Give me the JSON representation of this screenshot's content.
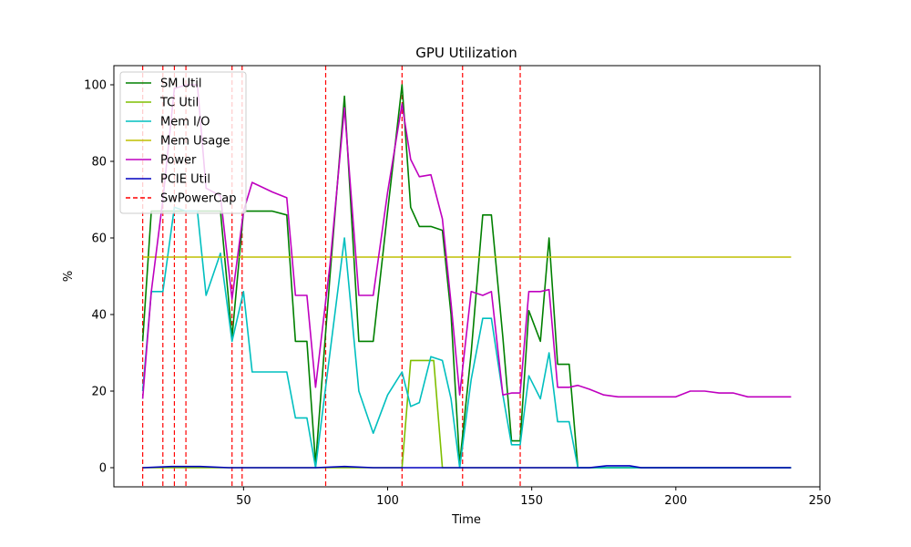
{
  "chart_data": {
    "type": "line",
    "title": "GPU Utilization",
    "xlabel": "Time",
    "ylabel": "%",
    "xlim": [
      5,
      250
    ],
    "ylim": [
      -5,
      105
    ],
    "xticks": [
      50,
      100,
      150,
      200,
      250
    ],
    "yticks": [
      0,
      20,
      40,
      60,
      80,
      100
    ],
    "grid": false,
    "legend_position": "upper-left",
    "series": [
      {
        "name": "SM Util",
        "color": "#008000",
        "points": [
          [
            15,
            33
          ],
          [
            18,
            67
          ],
          [
            22,
            67
          ],
          [
            26,
            67
          ],
          [
            30,
            67
          ],
          [
            34,
            67
          ],
          [
            37,
            67
          ],
          [
            42,
            67
          ],
          [
            46,
            34
          ],
          [
            50,
            67
          ],
          [
            55,
            67
          ],
          [
            60,
            67
          ],
          [
            65,
            66
          ],
          [
            68,
            33
          ],
          [
            72,
            33
          ],
          [
            75,
            1
          ],
          [
            80,
            50
          ],
          [
            85,
            97
          ],
          [
            90,
            33
          ],
          [
            95,
            33
          ],
          [
            100,
            67
          ],
          [
            105,
            100
          ],
          [
            108,
            68
          ],
          [
            111,
            63
          ],
          [
            115,
            63
          ],
          [
            119,
            62
          ],
          [
            122,
            40
          ],
          [
            125,
            1
          ],
          [
            129,
            30
          ],
          [
            133,
            66
          ],
          [
            136,
            66
          ],
          [
            140,
            34
          ],
          [
            143,
            7
          ],
          [
            146,
            7
          ],
          [
            149,
            41
          ],
          [
            153,
            33
          ],
          [
            156,
            60
          ],
          [
            159,
            27
          ],
          [
            163,
            27
          ],
          [
            166,
            0
          ],
          [
            175,
            0
          ],
          [
            240,
            0
          ]
        ]
      },
      {
        "name": "TC Util",
        "color": "#7fbf00",
        "points": [
          [
            15,
            0
          ],
          [
            100,
            0
          ],
          [
            105,
            0
          ],
          [
            108,
            28
          ],
          [
            114,
            28
          ],
          [
            116,
            28
          ],
          [
            119,
            0
          ],
          [
            240,
            0
          ]
        ]
      },
      {
        "name": "Mem I/O",
        "color": "#00bfbf",
        "points": [
          [
            15,
            20
          ],
          [
            18,
            46
          ],
          [
            22,
            46
          ],
          [
            26,
            68
          ],
          [
            30,
            67
          ],
          [
            34,
            67
          ],
          [
            37,
            45
          ],
          [
            42,
            56
          ],
          [
            46,
            33
          ],
          [
            50,
            46
          ],
          [
            53,
            25
          ],
          [
            60,
            25
          ],
          [
            65,
            25
          ],
          [
            68,
            13
          ],
          [
            72,
            13
          ],
          [
            75,
            0
          ],
          [
            80,
            30
          ],
          [
            85,
            60
          ],
          [
            90,
            20
          ],
          [
            95,
            9
          ],
          [
            100,
            19
          ],
          [
            105,
            25
          ],
          [
            108,
            16
          ],
          [
            111,
            17
          ],
          [
            115,
            29
          ],
          [
            119,
            28
          ],
          [
            122,
            18
          ],
          [
            125,
            0
          ],
          [
            129,
            23
          ],
          [
            133,
            39
          ],
          [
            136,
            39
          ],
          [
            140,
            19
          ],
          [
            143,
            6
          ],
          [
            146,
            6
          ],
          [
            149,
            24
          ],
          [
            153,
            18
          ],
          [
            156,
            30
          ],
          [
            159,
            12
          ],
          [
            163,
            12
          ],
          [
            166,
            0
          ],
          [
            175,
            0
          ],
          [
            240,
            0
          ]
        ]
      },
      {
        "name": "Mem Usage",
        "color": "#bfbf00",
        "points": [
          [
            15,
            55
          ],
          [
            240,
            55
          ]
        ]
      },
      {
        "name": "Power",
        "color": "#bf00bf",
        "points": [
          [
            15,
            18
          ],
          [
            18,
            46
          ],
          [
            22,
            70
          ],
          [
            26,
            99
          ],
          [
            30,
            100
          ],
          [
            34,
            100
          ],
          [
            37,
            73
          ],
          [
            42,
            71
          ],
          [
            46,
            44
          ],
          [
            50,
            67
          ],
          [
            53,
            74.5
          ],
          [
            60,
            72
          ],
          [
            65,
            70.5
          ],
          [
            68,
            45
          ],
          [
            72,
            45
          ],
          [
            75,
            21
          ],
          [
            80,
            53
          ],
          [
            85,
            94
          ],
          [
            90,
            45
          ],
          [
            95,
            45
          ],
          [
            100,
            72
          ],
          [
            105,
            95
          ],
          [
            108,
            80.5
          ],
          [
            111,
            76
          ],
          [
            115,
            76.5
          ],
          [
            119,
            65
          ],
          [
            122,
            43
          ],
          [
            125,
            19
          ],
          [
            129,
            46
          ],
          [
            133,
            45
          ],
          [
            136,
            46
          ],
          [
            140,
            19
          ],
          [
            143,
            19.5
          ],
          [
            146,
            19.5
          ],
          [
            149,
            46
          ],
          [
            153,
            46
          ],
          [
            156,
            46.5
          ],
          [
            159,
            21
          ],
          [
            163,
            21
          ],
          [
            166,
            21.5
          ],
          [
            170,
            20.5
          ],
          [
            175,
            19
          ],
          [
            180,
            18.5
          ],
          [
            200,
            18.5
          ],
          [
            205,
            20
          ],
          [
            210,
            20
          ],
          [
            215,
            19.5
          ],
          [
            220,
            19.5
          ],
          [
            225,
            18.5
          ],
          [
            240,
            18.5
          ]
        ]
      },
      {
        "name": "PCIE Util",
        "color": "#0000bf",
        "points": [
          [
            15,
            0
          ],
          [
            25,
            0.3
          ],
          [
            35,
            0.3
          ],
          [
            45,
            0
          ],
          [
            60,
            0
          ],
          [
            75,
            0
          ],
          [
            85,
            0.3
          ],
          [
            95,
            0
          ],
          [
            110,
            0
          ],
          [
            125,
            0
          ],
          [
            145,
            0
          ],
          [
            170,
            0
          ],
          [
            176,
            0.5
          ],
          [
            184,
            0.5
          ],
          [
            188,
            0
          ],
          [
            240,
            0
          ]
        ]
      }
    ],
    "events": {
      "name": "SwPowerCap",
      "color": "#ff0000",
      "x": [
        15,
        22,
        26,
        30,
        46,
        49.5,
        78.5,
        105,
        126,
        146
      ]
    }
  }
}
